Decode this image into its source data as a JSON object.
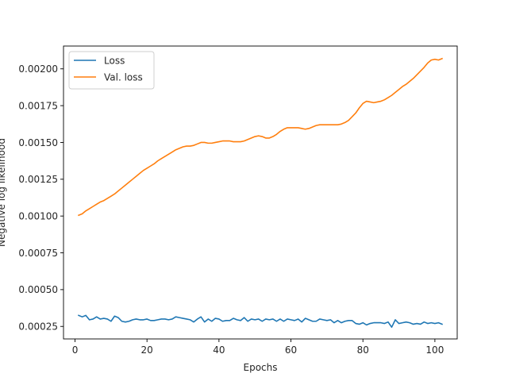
{
  "chart_data": {
    "type": "line",
    "title": "",
    "xlabel": "Epochs",
    "ylabel": "Negative log likelihood",
    "xlim": [
      -3.2,
      106.2
    ],
    "ylim": [
      0.000165,
      0.002155
    ],
    "xticks": [
      0,
      20,
      40,
      60,
      80,
      100
    ],
    "xtick_labels": [
      "0",
      "20",
      "40",
      "60",
      "80",
      "100"
    ],
    "yticks": [
      0.00025,
      0.0005,
      0.00075,
      0.001,
      0.00125,
      0.0015,
      0.00175,
      0.002
    ],
    "ytick_labels": [
      "0.00025",
      "0.00050",
      "0.00075",
      "0.00100",
      "0.00125",
      "0.00150",
      "0.00175",
      "0.00200"
    ],
    "grid": false,
    "legend_position": "top-left",
    "x": [
      1,
      2,
      3,
      4,
      5,
      6,
      7,
      8,
      9,
      10,
      11,
      12,
      13,
      14,
      15,
      16,
      17,
      18,
      19,
      20,
      21,
      22,
      23,
      24,
      25,
      26,
      27,
      28,
      29,
      30,
      31,
      32,
      33,
      34,
      35,
      36,
      37,
      38,
      39,
      40,
      41,
      42,
      43,
      44,
      45,
      46,
      47,
      48,
      49,
      50,
      51,
      52,
      53,
      54,
      55,
      56,
      57,
      58,
      59,
      60,
      61,
      62,
      63,
      64,
      65,
      66,
      67,
      68,
      69,
      70,
      71,
      72,
      73,
      74,
      75,
      76,
      77,
      78,
      79,
      80,
      81,
      82,
      83,
      84,
      85,
      86,
      87,
      88,
      89,
      90,
      91,
      92,
      93,
      94,
      95,
      96,
      97,
      98,
      99,
      100,
      101,
      102
    ],
    "series": [
      {
        "name": "Loss",
        "color": "#1f77b4",
        "values": [
          0.000325,
          0.000315,
          0.000325,
          0.000295,
          0.0003,
          0.000315,
          0.0003,
          0.000305,
          0.0003,
          0.000285,
          0.00032,
          0.00031,
          0.000285,
          0.00028,
          0.000285,
          0.000295,
          0.0003,
          0.000295,
          0.000295,
          0.0003,
          0.00029,
          0.00029,
          0.000295,
          0.0003,
          0.0003,
          0.000295,
          0.0003,
          0.000315,
          0.00031,
          0.000305,
          0.0003,
          0.000295,
          0.00028,
          0.0003,
          0.000315,
          0.00028,
          0.0003,
          0.000285,
          0.000305,
          0.0003,
          0.000285,
          0.00029,
          0.00029,
          0.000305,
          0.000295,
          0.00029,
          0.00031,
          0.000285,
          0.0003,
          0.000295,
          0.0003,
          0.000285,
          0.0003,
          0.000295,
          0.0003,
          0.000285,
          0.0003,
          0.000285,
          0.0003,
          0.000295,
          0.00029,
          0.0003,
          0.00028,
          0.000305,
          0.000295,
          0.000285,
          0.000285,
          0.0003,
          0.000295,
          0.00029,
          0.000295,
          0.000275,
          0.00029,
          0.000275,
          0.000285,
          0.00029,
          0.00029,
          0.00027,
          0.000265,
          0.000275,
          0.00026,
          0.00027,
          0.000275,
          0.000275,
          0.000275,
          0.00027,
          0.00028,
          0.000245,
          0.000295,
          0.00027,
          0.000275,
          0.00028,
          0.000275,
          0.000265,
          0.00027,
          0.000265,
          0.00028,
          0.00027,
          0.000275,
          0.00027,
          0.000275,
          0.000265
        ]
      },
      {
        "name": "Val. loss",
        "color": "#ff7f0e",
        "values": [
          0.001005,
          0.001015,
          0.001035,
          0.00105,
          0.001065,
          0.00108,
          0.001095,
          0.001105,
          0.00112,
          0.001135,
          0.00115,
          0.00117,
          0.00119,
          0.00121,
          0.00123,
          0.00125,
          0.00127,
          0.00129,
          0.00131,
          0.001325,
          0.00134,
          0.001355,
          0.001375,
          0.00139,
          0.001405,
          0.00142,
          0.001435,
          0.00145,
          0.00146,
          0.00147,
          0.001475,
          0.001475,
          0.00148,
          0.00149,
          0.0015,
          0.0015,
          0.001495,
          0.001495,
          0.0015,
          0.001505,
          0.00151,
          0.00151,
          0.00151,
          0.001505,
          0.001505,
          0.001505,
          0.00151,
          0.00152,
          0.00153,
          0.00154,
          0.001545,
          0.00154,
          0.00153,
          0.00153,
          0.00154,
          0.001555,
          0.001575,
          0.00159,
          0.0016,
          0.0016,
          0.0016,
          0.0016,
          0.001595,
          0.00159,
          0.001595,
          0.001605,
          0.001615,
          0.00162,
          0.00162,
          0.00162,
          0.00162,
          0.00162,
          0.00162,
          0.001625,
          0.001635,
          0.00165,
          0.001675,
          0.0017,
          0.001735,
          0.001765,
          0.00178,
          0.001775,
          0.00177,
          0.001775,
          0.00178,
          0.00179,
          0.001805,
          0.00182,
          0.00184,
          0.00186,
          0.00188,
          0.001895,
          0.001915,
          0.001935,
          0.00196,
          0.001985,
          0.00201,
          0.00204,
          0.00206,
          0.002065,
          0.00206,
          0.00207
        ]
      }
    ]
  }
}
